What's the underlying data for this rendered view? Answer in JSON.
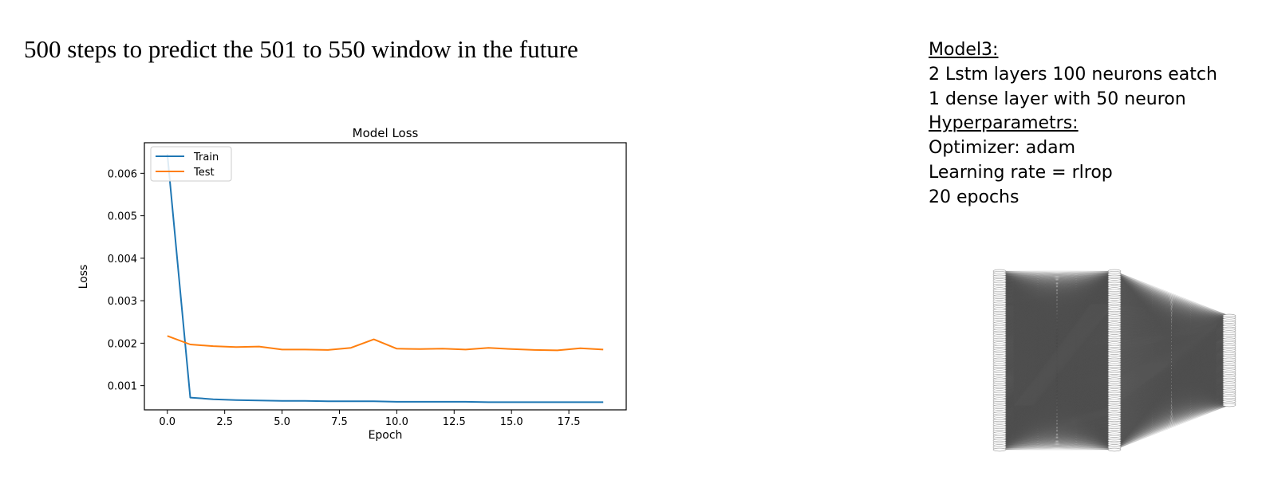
{
  "slide": {
    "title": "500 steps to predict the 501 to 550 window in the future"
  },
  "notes": {
    "model_heading": "Model3:",
    "lines_model": [
      "2 Lstm layers 100 neurons eatch",
      "1 dense layer with 50 neuron"
    ],
    "hyper_heading": "Hyperparametrs:",
    "lines_hyper": [
      "Optimizer: adam",
      "Learning rate = rlrop",
      "20 epochs"
    ]
  },
  "chart_data": {
    "type": "line",
    "title": "Model Loss",
    "xlabel": "Epoch",
    "ylabel": "Loss",
    "x": [
      0,
      1,
      2,
      3,
      4,
      5,
      6,
      7,
      8,
      9,
      10,
      11,
      12,
      13,
      14,
      15,
      16,
      17,
      18,
      19
    ],
    "xlim": [
      -1,
      20
    ],
    "ylim": [
      0.00043,
      0.00672
    ],
    "xticks": [
      0.0,
      2.5,
      5.0,
      7.5,
      10.0,
      12.5,
      15.0,
      17.5
    ],
    "xtick_labels": [
      "0.0",
      "2.5",
      "5.0",
      "7.5",
      "10.0",
      "12.5",
      "15.0",
      "17.5"
    ],
    "yticks": [
      0.001,
      0.002,
      0.003,
      0.004,
      0.005,
      0.006
    ],
    "ytick_labels": [
      "0.001",
      "0.002",
      "0.003",
      "0.004",
      "0.005",
      "0.006"
    ],
    "legend_position": "upper left",
    "grid": false,
    "series": [
      {
        "name": "Train",
        "color": "#1f77b4",
        "values": [
          0.00645,
          0.00072,
          0.00068,
          0.00066,
          0.00065,
          0.00064,
          0.00064,
          0.00063,
          0.00063,
          0.00063,
          0.00062,
          0.00062,
          0.00062,
          0.00062,
          0.00061,
          0.00061,
          0.00061,
          0.00061,
          0.00061,
          0.00061
        ]
      },
      {
        "name": "Test",
        "color": "#ff7f0e",
        "values": [
          0.00217,
          0.00197,
          0.00193,
          0.00191,
          0.00192,
          0.00185,
          0.00185,
          0.00184,
          0.00189,
          0.00209,
          0.00187,
          0.00186,
          0.00187,
          0.00185,
          0.00189,
          0.00186,
          0.00184,
          0.00183,
          0.00188,
          0.00185
        ]
      }
    ]
  },
  "network_diagram": {
    "layers": [
      100,
      100,
      50
    ],
    "line_color": "#555555"
  }
}
